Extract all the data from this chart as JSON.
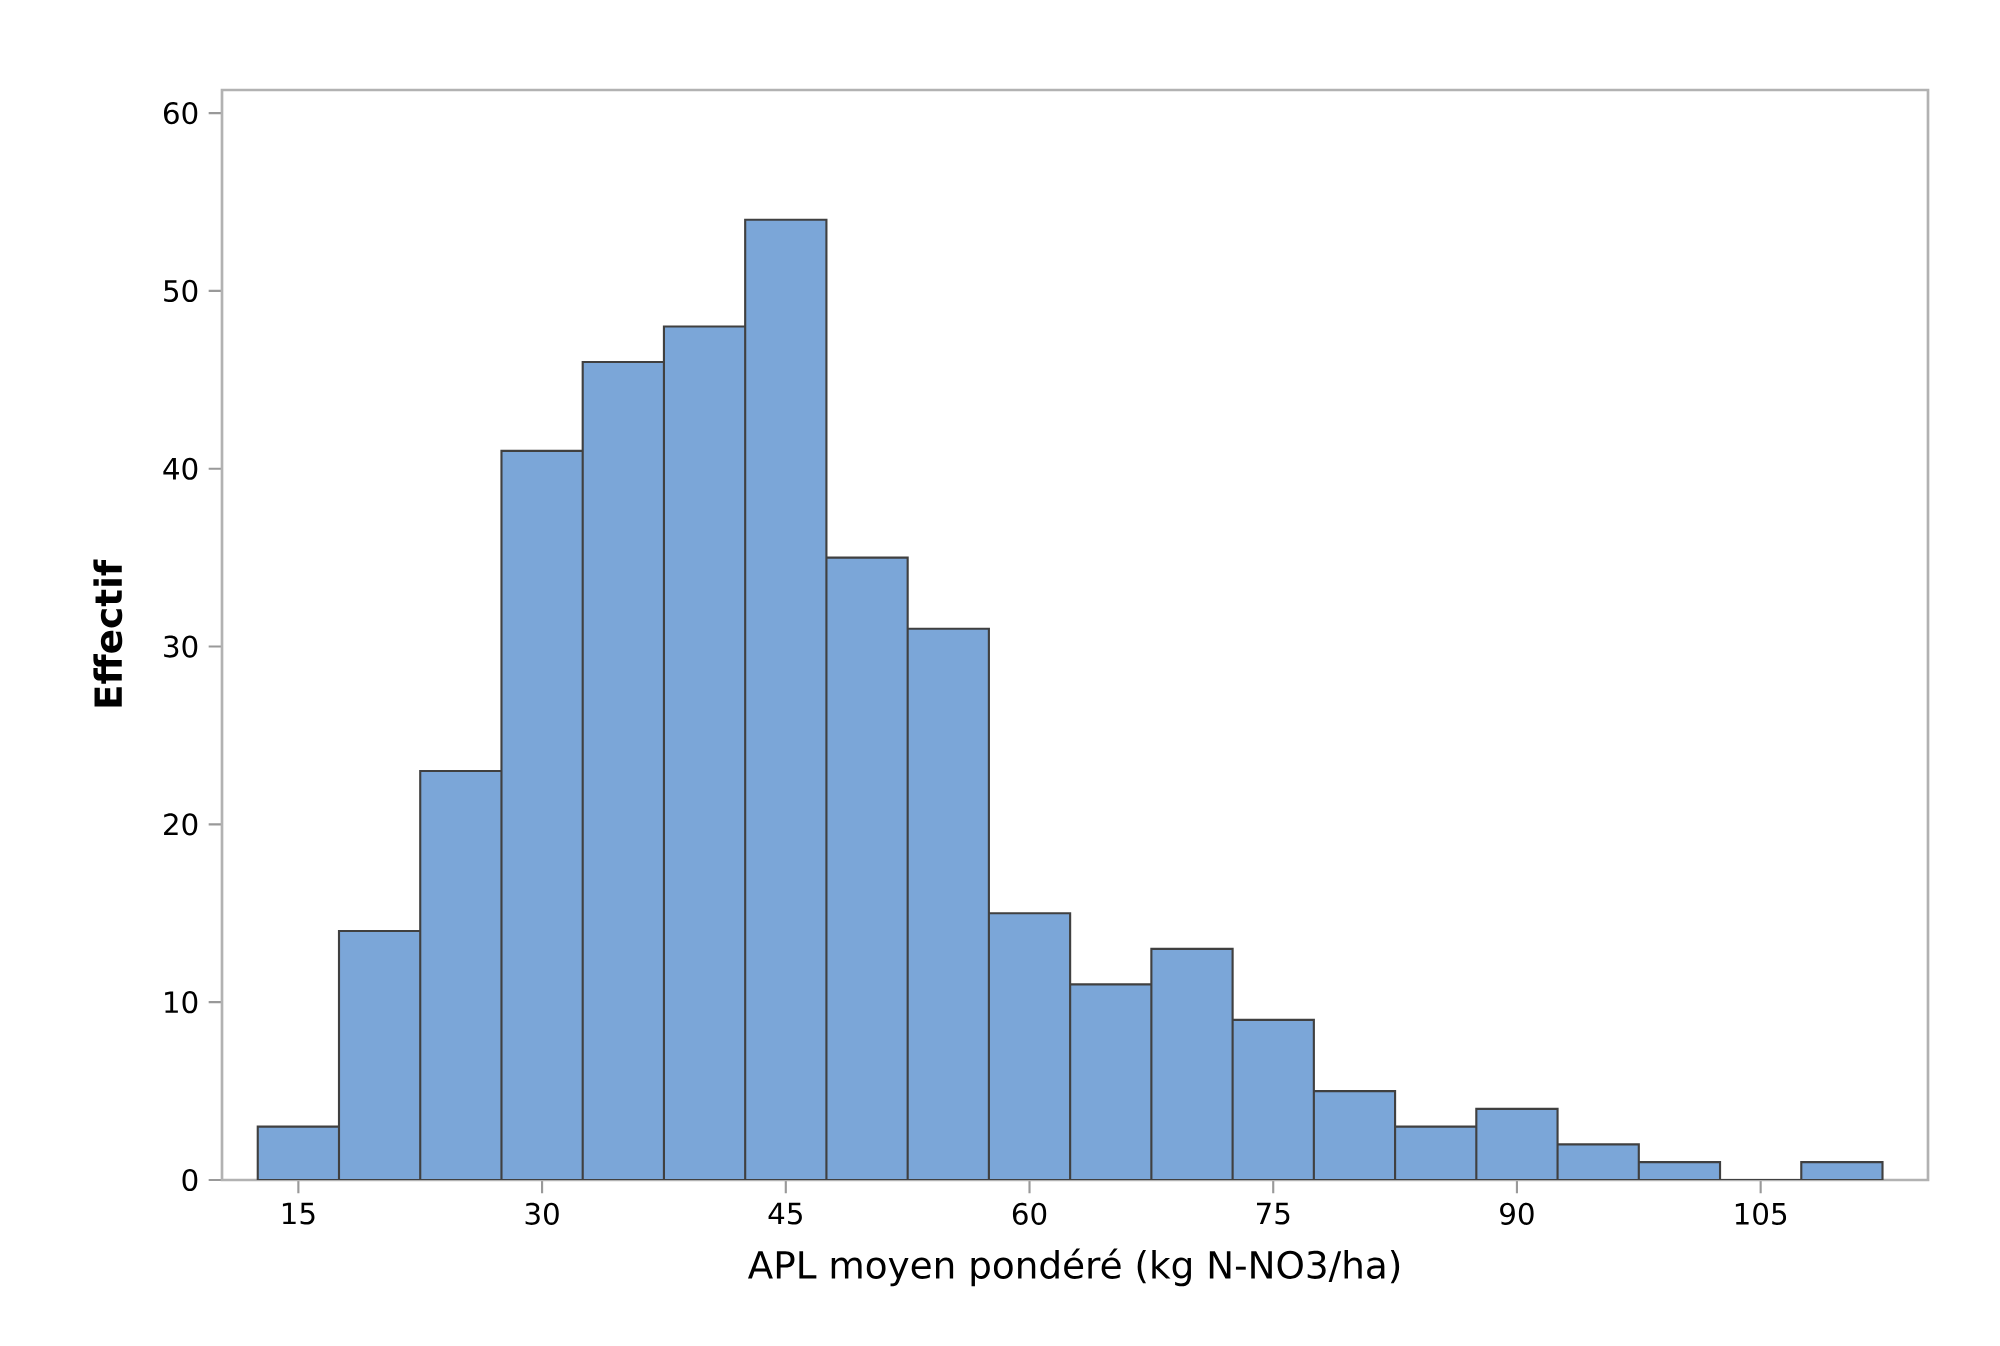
{
  "chart_data": {
    "type": "histogram",
    "xlabel": "APL moyen pondéré (kg N-NO3/ha)",
    "ylabel": "Effectif",
    "bins": [
      12.5,
      17.5,
      22.5,
      27.5,
      32.5,
      37.5,
      42.5,
      47.5,
      52.5,
      57.5,
      62.5,
      67.5,
      72.5,
      77.5,
      82.5,
      87.5,
      92.5,
      97.5,
      102.5,
      107.5,
      112.5
    ],
    "values": [
      3,
      14,
      23,
      41,
      46,
      48,
      54,
      35,
      31,
      15,
      11,
      13,
      9,
      5,
      3,
      4,
      2,
      1,
      0,
      1
    ],
    "color": "#7ba6d8",
    "xlim": [
      10.3,
      115.3
    ],
    "ylim": [
      0,
      61.3
    ],
    "xticks": [
      15,
      30,
      45,
      60,
      75,
      90,
      105
    ],
    "yticks": [
      0,
      10,
      20,
      30,
      40,
      50,
      60
    ],
    "grid": false
  }
}
